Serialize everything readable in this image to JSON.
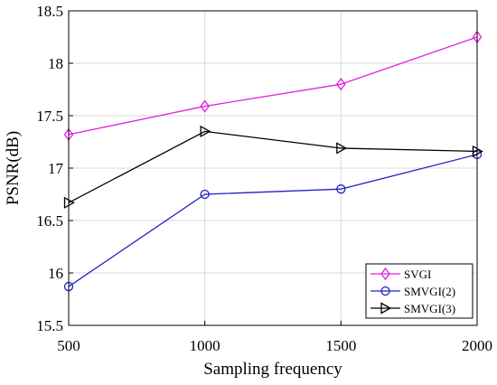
{
  "chart_data": {
    "type": "line",
    "xlabel": "Sampling frequency",
    "ylabel": "PSNR(dB)",
    "x": [
      500,
      1000,
      1500,
      2000
    ],
    "xlim": [
      500,
      2000
    ],
    "ylim": [
      15.5,
      18.5
    ],
    "xticks": [
      500,
      1000,
      1500,
      2000
    ],
    "xtick_labels": [
      "500",
      "1000",
      "1500",
      "2000"
    ],
    "yticks": [
      15.5,
      16,
      16.5,
      17,
      17.5,
      18,
      18.5
    ],
    "ytick_labels": [
      "15.5",
      "16",
      "16.5",
      "17",
      "17.5",
      "18",
      "18.5"
    ],
    "grid": true,
    "legend_position": "bottom-right",
    "series": [
      {
        "name": "SVGI",
        "values": [
          17.32,
          17.59,
          17.8,
          18.25
        ],
        "color": "#e020e0",
        "marker": "diamond"
      },
      {
        "name": "SMVGI(2)",
        "values": [
          15.87,
          16.75,
          16.8,
          17.13
        ],
        "color": "#2020c8",
        "marker": "circle"
      },
      {
        "name": "SMVGI(3)",
        "values": [
          16.67,
          17.35,
          17.19,
          17.16
        ],
        "color": "#000000",
        "marker": "triangle-right"
      }
    ]
  }
}
